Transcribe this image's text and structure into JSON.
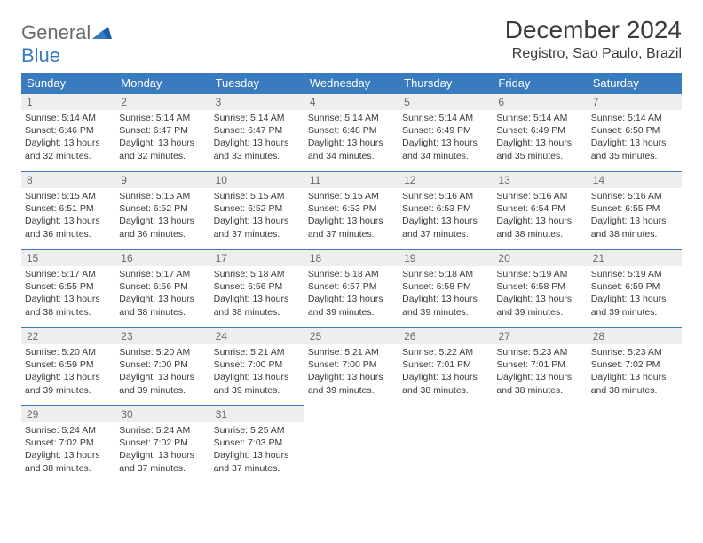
{
  "logo": {
    "text1": "General",
    "text2": "Blue"
  },
  "title": "December 2024",
  "location": "Registro, Sao Paulo, Brazil",
  "colors": {
    "header_bg": "#3a7bbf",
    "header_fg": "#ffffff",
    "daynum_bg": "#eeeeee",
    "daynum_fg": "#6b6b6b",
    "row_border": "#3a7bbf",
    "body_text": "#3a3a3a",
    "logo_gray": "#6b6b6b",
    "logo_blue": "#3a7bbf"
  },
  "weekdays": [
    "Sunday",
    "Monday",
    "Tuesday",
    "Wednesday",
    "Thursday",
    "Friday",
    "Saturday"
  ],
  "weeks": [
    [
      {
        "n": "1",
        "sr": "5:14 AM",
        "ss": "6:46 PM",
        "dl": "13 hours and 32 minutes."
      },
      {
        "n": "2",
        "sr": "5:14 AM",
        "ss": "6:47 PM",
        "dl": "13 hours and 32 minutes."
      },
      {
        "n": "3",
        "sr": "5:14 AM",
        "ss": "6:47 PM",
        "dl": "13 hours and 33 minutes."
      },
      {
        "n": "4",
        "sr": "5:14 AM",
        "ss": "6:48 PM",
        "dl": "13 hours and 34 minutes."
      },
      {
        "n": "5",
        "sr": "5:14 AM",
        "ss": "6:49 PM",
        "dl": "13 hours and 34 minutes."
      },
      {
        "n": "6",
        "sr": "5:14 AM",
        "ss": "6:49 PM",
        "dl": "13 hours and 35 minutes."
      },
      {
        "n": "7",
        "sr": "5:14 AM",
        "ss": "6:50 PM",
        "dl": "13 hours and 35 minutes."
      }
    ],
    [
      {
        "n": "8",
        "sr": "5:15 AM",
        "ss": "6:51 PM",
        "dl": "13 hours and 36 minutes."
      },
      {
        "n": "9",
        "sr": "5:15 AM",
        "ss": "6:52 PM",
        "dl": "13 hours and 36 minutes."
      },
      {
        "n": "10",
        "sr": "5:15 AM",
        "ss": "6:52 PM",
        "dl": "13 hours and 37 minutes."
      },
      {
        "n": "11",
        "sr": "5:15 AM",
        "ss": "6:53 PM",
        "dl": "13 hours and 37 minutes."
      },
      {
        "n": "12",
        "sr": "5:16 AM",
        "ss": "6:53 PM",
        "dl": "13 hours and 37 minutes."
      },
      {
        "n": "13",
        "sr": "5:16 AM",
        "ss": "6:54 PM",
        "dl": "13 hours and 38 minutes."
      },
      {
        "n": "14",
        "sr": "5:16 AM",
        "ss": "6:55 PM",
        "dl": "13 hours and 38 minutes."
      }
    ],
    [
      {
        "n": "15",
        "sr": "5:17 AM",
        "ss": "6:55 PM",
        "dl": "13 hours and 38 minutes."
      },
      {
        "n": "16",
        "sr": "5:17 AM",
        "ss": "6:56 PM",
        "dl": "13 hours and 38 minutes."
      },
      {
        "n": "17",
        "sr": "5:18 AM",
        "ss": "6:56 PM",
        "dl": "13 hours and 38 minutes."
      },
      {
        "n": "18",
        "sr": "5:18 AM",
        "ss": "6:57 PM",
        "dl": "13 hours and 39 minutes."
      },
      {
        "n": "19",
        "sr": "5:18 AM",
        "ss": "6:58 PM",
        "dl": "13 hours and 39 minutes."
      },
      {
        "n": "20",
        "sr": "5:19 AM",
        "ss": "6:58 PM",
        "dl": "13 hours and 39 minutes."
      },
      {
        "n": "21",
        "sr": "5:19 AM",
        "ss": "6:59 PM",
        "dl": "13 hours and 39 minutes."
      }
    ],
    [
      {
        "n": "22",
        "sr": "5:20 AM",
        "ss": "6:59 PM",
        "dl": "13 hours and 39 minutes."
      },
      {
        "n": "23",
        "sr": "5:20 AM",
        "ss": "7:00 PM",
        "dl": "13 hours and 39 minutes."
      },
      {
        "n": "24",
        "sr": "5:21 AM",
        "ss": "7:00 PM",
        "dl": "13 hours and 39 minutes."
      },
      {
        "n": "25",
        "sr": "5:21 AM",
        "ss": "7:00 PM",
        "dl": "13 hours and 39 minutes."
      },
      {
        "n": "26",
        "sr": "5:22 AM",
        "ss": "7:01 PM",
        "dl": "13 hours and 38 minutes."
      },
      {
        "n": "27",
        "sr": "5:23 AM",
        "ss": "7:01 PM",
        "dl": "13 hours and 38 minutes."
      },
      {
        "n": "28",
        "sr": "5:23 AM",
        "ss": "7:02 PM",
        "dl": "13 hours and 38 minutes."
      }
    ],
    [
      {
        "n": "29",
        "sr": "5:24 AM",
        "ss": "7:02 PM",
        "dl": "13 hours and 38 minutes."
      },
      {
        "n": "30",
        "sr": "5:24 AM",
        "ss": "7:02 PM",
        "dl": "13 hours and 37 minutes."
      },
      {
        "n": "31",
        "sr": "5:25 AM",
        "ss": "7:03 PM",
        "dl": "13 hours and 37 minutes."
      },
      null,
      null,
      null,
      null
    ]
  ],
  "labels": {
    "sunrise": "Sunrise:",
    "sunset": "Sunset:",
    "daylight": "Daylight:"
  }
}
